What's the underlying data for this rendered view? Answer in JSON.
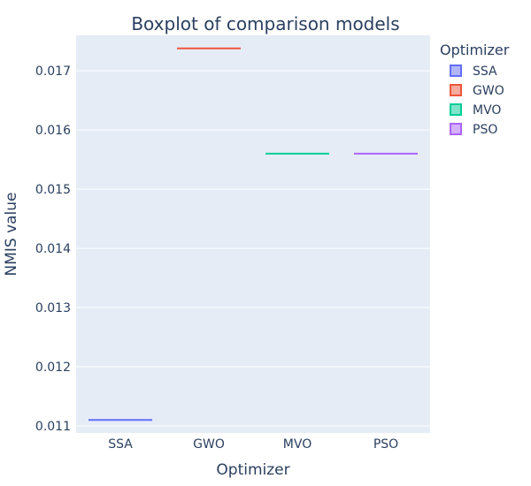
{
  "chart_data": {
    "type": "box",
    "title": "Boxplot of comparison models",
    "xlabel": "Optimizer",
    "ylabel": "NMIS value",
    "categories": [
      "SSA",
      "GWO",
      "MVO",
      "PSO"
    ],
    "series": [
      {
        "name": "SSA",
        "values": [
          0.0111
        ],
        "color": "#636efa"
      },
      {
        "name": "GWO",
        "values": [
          0.01738
        ],
        "color": "#ef553b"
      },
      {
        "name": "MVO",
        "values": [
          0.0156
        ],
        "color": "#00cc96"
      },
      {
        "name": "PSO",
        "values": [
          0.0156
        ],
        "color": "#ab63fa"
      }
    ],
    "yticks": [
      "0.011",
      "0.012",
      "0.013",
      "0.014",
      "0.015",
      "0.016",
      "0.017"
    ],
    "ylim": [
      0.01088,
      0.0176
    ],
    "legend_title": "Optimizer",
    "legend_position": "top-right",
    "grid": true,
    "plot_bg": "#e5ecf6"
  }
}
